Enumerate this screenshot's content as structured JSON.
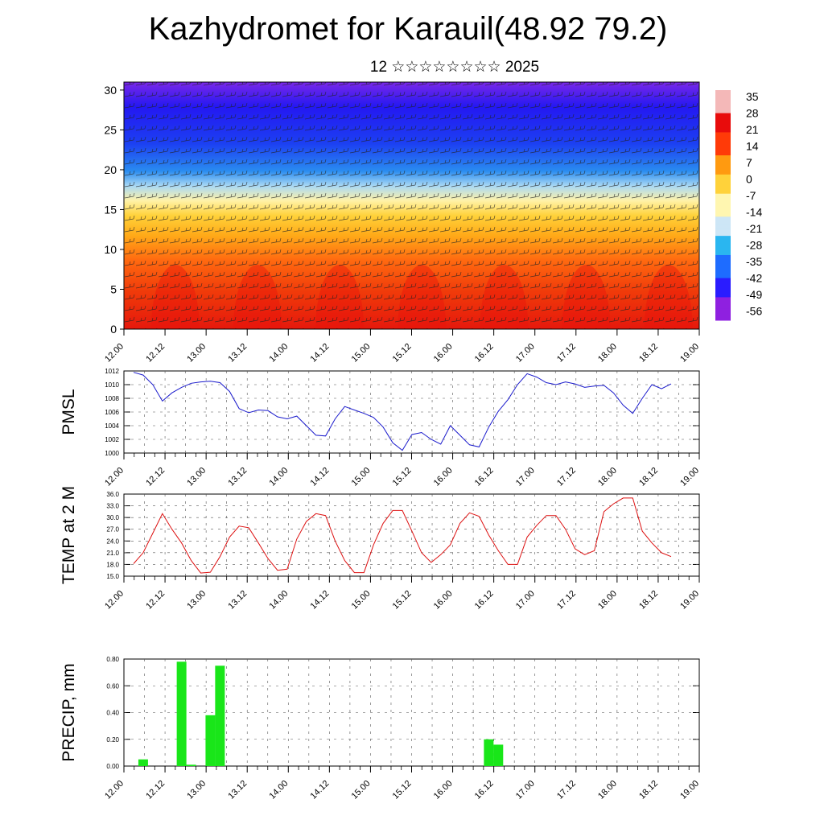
{
  "header": {
    "title": "Kazhydromet for Karauil(48.92 79.2)",
    "subtitle": "12 ☆☆☆☆☆☆☆☆ 2025"
  },
  "colors": {
    "pmsl_line": "#1a1acc",
    "temp_line": "#dd1111",
    "precip_bar": "#19e619",
    "colormap": [
      "#8f20e0",
      "#2a1cff",
      "#1e6cff",
      "#2ab6f0",
      "#cde6f6",
      "#fff6b0",
      "#ffd23a",
      "#ff9a10",
      "#ff3a08",
      "#e80c0c",
      "#f4b8b8"
    ]
  },
  "chart_data": [
    {
      "type": "heatmap",
      "name": "temperature-wind cross-section",
      "ylim": [
        0,
        31
      ],
      "yticks": [
        "0",
        "5",
        "10",
        "15",
        "20",
        "25",
        "30"
      ],
      "x_tick_labels": [
        "12.00",
        "12.12",
        "13.00",
        "13.12",
        "14.00",
        "14.12",
        "15.00",
        "15.12",
        "16.00",
        "16.12",
        "17.00",
        "17.12",
        "18.00",
        "18.12",
        "19.00"
      ],
      "colorbar_labels": [
        "35",
        "28",
        "21",
        "14",
        "7",
        "0",
        "-7",
        "-14",
        "-21",
        "-28",
        "-35",
        "-42",
        "-49",
        "-56"
      ],
      "overlay": "wind barbs"
    },
    {
      "type": "line",
      "ylabel": "PMSL",
      "ylim": [
        1000,
        1012
      ],
      "y_tick_labels": [
        "1012",
        "1010",
        "1008",
        "1006",
        "1004",
        "1002",
        "1000"
      ],
      "x_tick_labels": [
        "12.00",
        "12.12",
        "13.00",
        "13.12",
        "14.00",
        "14.12",
        "15.00",
        "15.12",
        "16.00",
        "16.12",
        "17.00",
        "17.12",
        "18.00",
        "18.12",
        "19.00"
      ],
      "x": [
        0,
        3,
        6,
        9,
        12,
        15,
        18,
        21,
        24,
        27,
        30,
        33,
        36,
        39,
        42,
        45,
        48,
        51,
        54,
        57,
        60,
        63,
        66,
        69,
        72,
        75,
        78,
        81,
        84,
        87,
        90,
        93,
        96,
        99,
        102,
        105,
        108,
        111,
        114,
        117,
        120,
        123,
        126,
        129,
        132,
        135,
        138,
        141,
        144,
        147,
        150,
        153,
        156,
        159,
        162,
        165,
        168
      ],
      "series": [
        {
          "values": [
            1011.8,
            1011.4,
            1010.0,
            1007.6,
            1008.8,
            1009.6,
            1010.2,
            1010.4,
            1010.5,
            1010.3,
            1009.0,
            1006.5,
            1005.9,
            1006.3,
            1006.2,
            1005.3,
            1005.0,
            1005.4,
            1004.0,
            1002.6,
            1002.5,
            1005.0,
            1006.8,
            1006.3,
            1005.8,
            1005.2,
            1003.8,
            1001.5,
            1000.4,
            1002.7,
            1003.0,
            1002.0,
            1001.3,
            1004.0,
            1002.6,
            1001.2,
            1000.9,
            1003.8,
            1006.1,
            1007.8,
            1010.0,
            1011.6,
            1011.1,
            1010.3,
            1010.0,
            1010.4,
            1010.1,
            1009.6,
            1009.8,
            1009.9,
            1008.8,
            1007.0,
            1005.8,
            1008.0,
            1010.0,
            1009.4,
            1010.1
          ]
        }
      ]
    },
    {
      "type": "line",
      "ylabel": "TEMP at 2 M",
      "ylim": [
        15,
        36
      ],
      "y_tick_labels": [
        "36.0",
        "33.0",
        "30.0",
        "27.0",
        "24.0",
        "21.0",
        "18.0",
        "15.0"
      ],
      "x_tick_labels": [
        "12.00",
        "12.12",
        "13.00",
        "13.12",
        "14.00",
        "14.12",
        "15.00",
        "15.12",
        "16.00",
        "16.12",
        "17.00",
        "17.12",
        "18.00",
        "18.12",
        "19.00"
      ],
      "x": [
        0,
        3,
        6,
        9,
        12,
        15,
        18,
        21,
        24,
        27,
        30,
        33,
        36,
        39,
        42,
        45,
        48,
        51,
        54,
        57,
        60,
        63,
        66,
        69,
        72,
        75,
        78,
        81,
        84,
        87,
        90,
        93,
        96,
        99,
        102,
        105,
        108,
        111,
        114,
        117,
        120,
        123,
        126,
        129,
        132,
        135,
        138,
        141,
        144,
        147,
        150,
        153,
        156,
        159,
        162,
        165,
        168
      ],
      "series": [
        {
          "values": [
            18.2,
            21.0,
            26.0,
            31.0,
            27.0,
            23.5,
            19.0,
            15.8,
            16.0,
            20.0,
            25.0,
            27.8,
            27.4,
            23.5,
            19.5,
            16.5,
            16.8,
            24.5,
            29.0,
            31.0,
            30.5,
            24.0,
            19.0,
            15.9,
            15.9,
            23.0,
            28.5,
            31.8,
            31.8,
            26.5,
            21.0,
            18.5,
            20.5,
            23.0,
            28.5,
            31.2,
            30.3,
            25.5,
            21.5,
            18.0,
            18.0,
            25.0,
            28.0,
            30.5,
            30.5,
            27.0,
            22.0,
            20.5,
            21.5,
            31.5,
            33.5,
            35.0,
            35.0,
            26.5,
            23.5,
            21.0,
            20.0
          ]
        }
      ]
    },
    {
      "type": "bar",
      "ylabel": "PRECIP, mm",
      "ylim": [
        0,
        0.8
      ],
      "y_tick_labels": [
        "0.80",
        "0.60",
        "0.40",
        "0.20",
        "0.00"
      ],
      "x_tick_labels": [
        "12.00",
        "12.12",
        "13.00",
        "13.12",
        "14.00",
        "14.12",
        "15.00",
        "15.12",
        "16.00",
        "16.12",
        "17.00",
        "17.12",
        "18.00",
        "18.12",
        "19.00"
      ],
      "x": [
        3,
        15,
        18,
        24,
        27,
        111,
        114
      ],
      "values": [
        0.05,
        0.78,
        0.01,
        0.38,
        0.75,
        0.2,
        0.16
      ]
    }
  ]
}
